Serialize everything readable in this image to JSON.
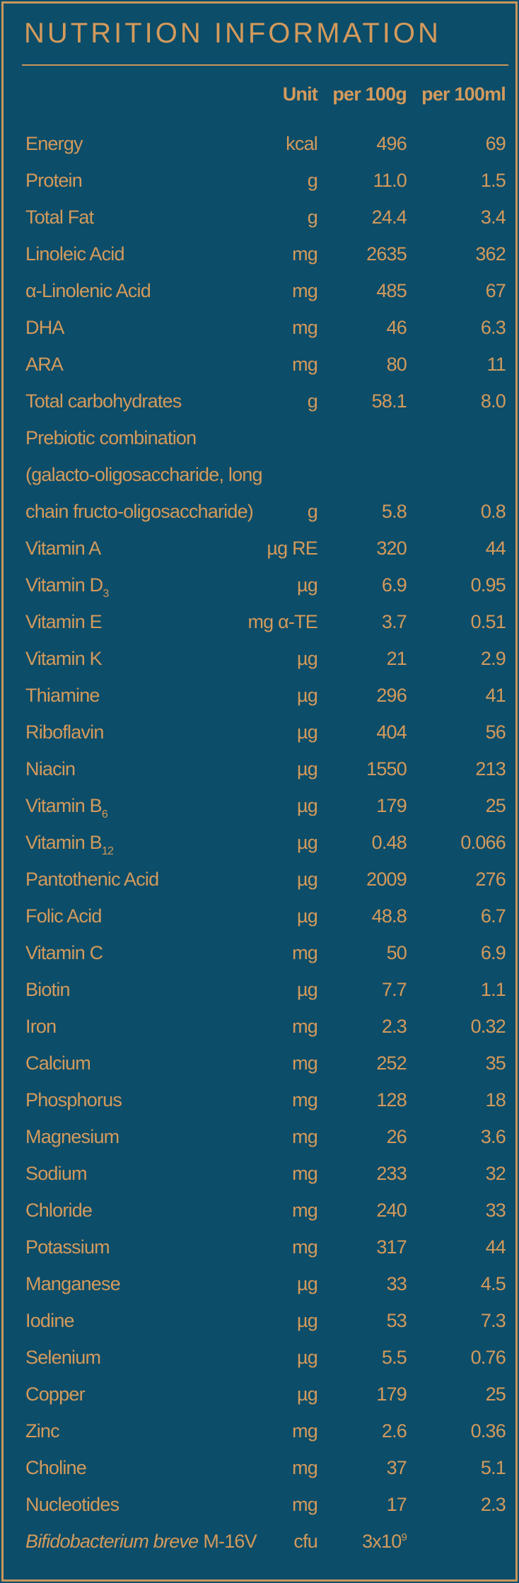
{
  "header": {
    "title": "NUTRITION INFORMATION",
    "columns": [
      "Unit",
      "per 100g",
      "per 100ml"
    ]
  },
  "table": {
    "rows": [
      {
        "name": "Energy",
        "unit": "kcal",
        "per_100g": "496",
        "per_100ml": "69"
      },
      {
        "name": "Protein",
        "unit": "g",
        "per_100g": "11.0",
        "per_100ml": "1.5"
      },
      {
        "name": "Total Fat",
        "unit": "g",
        "per_100g": "24.4",
        "per_100ml": "3.4"
      },
      {
        "name": "Linoleic Acid",
        "unit": "mg",
        "per_100g": "2635",
        "per_100ml": "362"
      },
      {
        "name": "α-Linolenic Acid",
        "unit": "mg",
        "per_100g": "485",
        "per_100ml": "67"
      },
      {
        "name": "DHA",
        "unit": "mg",
        "per_100g": "46",
        "per_100ml": "6.3"
      },
      {
        "name": "ARA",
        "unit": "mg",
        "per_100g": "80",
        "per_100ml": "11"
      },
      {
        "name": "Total carbohydrates",
        "unit": "g",
        "per_100g": "58.1",
        "per_100ml": "8.0"
      },
      {
        "name_lines": [
          "Prebiotic combination",
          "(galacto-oligosaccharide, long",
          "chain fructo-oligosaccharide)"
        ],
        "unit": "g",
        "per_100g": "5.8",
        "per_100ml": "0.8"
      },
      {
        "name": "Vitamin A",
        "unit": "µg RE",
        "per_100g": "320",
        "per_100ml": "44"
      },
      {
        "name": "Vitamin D",
        "name_sub": "3",
        "unit": "µg",
        "per_100g": "6.9",
        "per_100ml": "0.95"
      },
      {
        "name": "Vitamin E",
        "unit": "mg α-TE",
        "per_100g": "3.7",
        "per_100ml": "0.51"
      },
      {
        "name": "Vitamin K",
        "unit": "µg",
        "per_100g": "21",
        "per_100ml": "2.9"
      },
      {
        "name": "Thiamine",
        "unit": "µg",
        "per_100g": "296",
        "per_100ml": "41"
      },
      {
        "name": "Riboflavin",
        "unit": "µg",
        "per_100g": "404",
        "per_100ml": "56"
      },
      {
        "name": "Niacin",
        "unit": "µg",
        "per_100g": "1550",
        "per_100ml": "213"
      },
      {
        "name": "Vitamin B",
        "name_sub": "6",
        "unit": "µg",
        "per_100g": "179",
        "per_100ml": "25"
      },
      {
        "name": "Vitamin B",
        "name_sub": "12",
        "unit": "µg",
        "per_100g": "0.48",
        "per_100ml": "0.066"
      },
      {
        "name": "Pantothenic Acid",
        "unit": "µg",
        "per_100g": "2009",
        "per_100ml": "276"
      },
      {
        "name": "Folic Acid",
        "unit": "µg",
        "per_100g": "48.8",
        "per_100ml": "6.7"
      },
      {
        "name": "Vitamin C",
        "unit": "mg",
        "per_100g": "50",
        "per_100ml": "6.9"
      },
      {
        "name": "Biotin",
        "unit": "µg",
        "per_100g": "7.7",
        "per_100ml": "1.1"
      },
      {
        "name": "Iron",
        "unit": "mg",
        "per_100g": "2.3",
        "per_100ml": "0.32"
      },
      {
        "name": "Calcium",
        "unit": "mg",
        "per_100g": "252",
        "per_100ml": "35"
      },
      {
        "name": "Phosphorus",
        "unit": "mg",
        "per_100g": "128",
        "per_100ml": "18"
      },
      {
        "name": "Magnesium",
        "unit": "mg",
        "per_100g": "26",
        "per_100ml": "3.6"
      },
      {
        "name": "Sodium",
        "unit": "mg",
        "per_100g": "233",
        "per_100ml": "32"
      },
      {
        "name": "Chloride",
        "unit": "mg",
        "per_100g": "240",
        "per_100ml": "33"
      },
      {
        "name": "Potassium",
        "unit": "mg",
        "per_100g": "317",
        "per_100ml": "44"
      },
      {
        "name": "Manganese",
        "unit": "µg",
        "per_100g": "33",
        "per_100ml": "4.5"
      },
      {
        "name": "Iodine",
        "unit": "µg",
        "per_100g": "53",
        "per_100ml": "7.3"
      },
      {
        "name": "Selenium",
        "unit": "µg",
        "per_100g": "5.5",
        "per_100ml": "0.76"
      },
      {
        "name": "Copper",
        "unit": "µg",
        "per_100g": "179",
        "per_100ml": "25"
      },
      {
        "name": "Zinc",
        "unit": "mg",
        "per_100g": "2.6",
        "per_100ml": "0.36"
      },
      {
        "name": "Choline",
        "unit": "mg",
        "per_100g": "37",
        "per_100ml": "5.1"
      },
      {
        "name": "Nucleotides",
        "unit": "mg",
        "per_100g": "17",
        "per_100ml": "2.3"
      },
      {
        "name_italic": "Bifidobacterium breve",
        "name": "M-16V",
        "unit": "cfu",
        "per_100g": "3x10",
        "per_100g_sup": "9"
      }
    ]
  }
}
